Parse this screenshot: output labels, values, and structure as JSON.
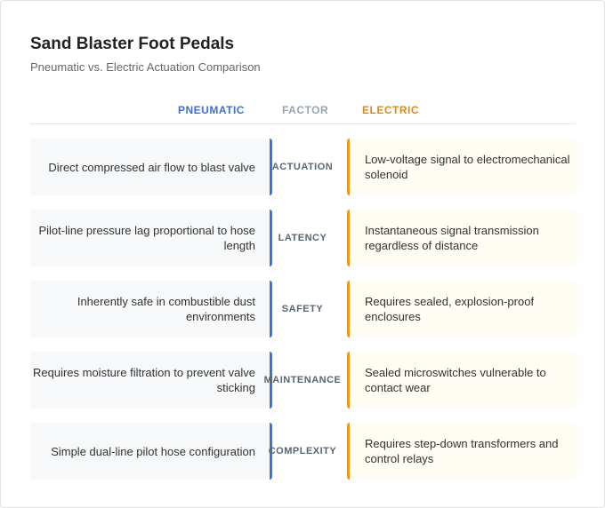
{
  "header": {
    "title": "Sand Blaster Foot Pedals",
    "subtitle": "Pneumatic vs. Electric Actuation Comparison"
  },
  "columns": {
    "left": "PNEUMATIC",
    "middle": "FACTOR",
    "right": "ELECTRIC"
  },
  "rows": [
    {
      "factor": "ACTUATION",
      "pneumatic": "Direct compressed air flow to blast valve",
      "electric": "Low-voltage signal to electromechanical solenoid"
    },
    {
      "factor": "LATENCY",
      "pneumatic": "Pilot-line pressure lag proportional to hose length",
      "electric": "Instantaneous signal transmission regardless of distance"
    },
    {
      "factor": "SAFETY",
      "pneumatic": "Inherently safe in combustible dust environments",
      "electric": "Requires sealed, explosion-proof enclosures"
    },
    {
      "factor": "MAINTENANCE",
      "pneumatic": "Requires moisture filtration to prevent valve sticking",
      "electric": "Sealed microswitches vulnerable to contact wear"
    },
    {
      "factor": "COMPLEXITY",
      "pneumatic": "Simple dual-line pilot hose configuration",
      "electric": "Requires step-down transformers and control relays"
    }
  ]
}
